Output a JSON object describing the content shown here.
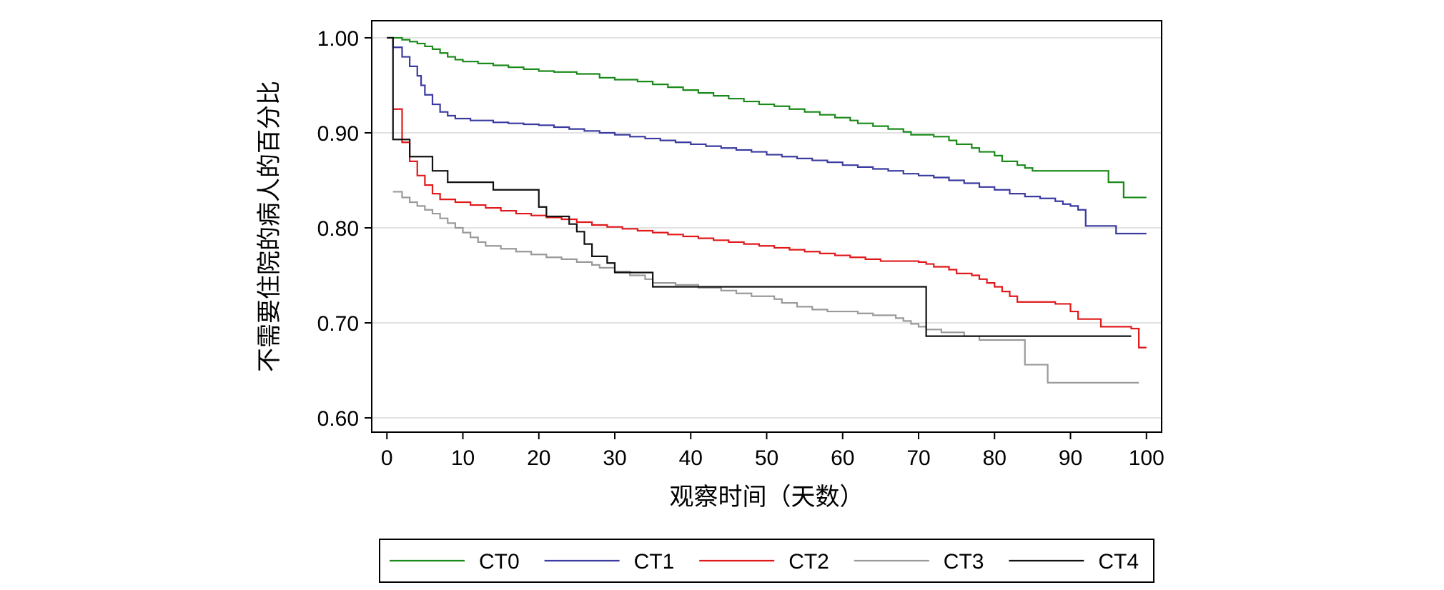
{
  "chart_data": {
    "type": "line",
    "step": true,
    "title": "",
    "xlabel": "观察时间（天数）",
    "ylabel": "不需要住院的病人的百分比",
    "xlim": [
      -2,
      102
    ],
    "ylim": [
      0.585,
      1.018
    ],
    "xticks": [
      0,
      10,
      20,
      30,
      40,
      50,
      60,
      70,
      80,
      90,
      100
    ],
    "xtick_labels": [
      "0",
      "10",
      "20",
      "30",
      "40",
      "50",
      "60",
      "70",
      "80",
      "90",
      "100"
    ],
    "yticks": [
      0.6,
      0.7,
      0.8,
      0.9,
      1.0
    ],
    "ytick_labels": [
      "0.60",
      "0.70",
      "0.80",
      "0.90",
      "1.00"
    ],
    "grid": "horizontal",
    "legend_position": "bottom",
    "series": [
      {
        "name": "CT0",
        "color": "#1a8a1a",
        "points": [
          [
            0,
            1.0
          ],
          [
            2,
            0.998
          ],
          [
            3,
            0.996
          ],
          [
            4,
            0.994
          ],
          [
            5,
            0.991
          ],
          [
            6,
            0.988
          ],
          [
            7,
            0.984
          ],
          [
            8,
            0.98
          ],
          [
            9,
            0.977
          ],
          [
            10,
            0.975
          ],
          [
            12,
            0.973
          ],
          [
            14,
            0.971
          ],
          [
            16,
            0.969
          ],
          [
            18,
            0.967
          ],
          [
            20,
            0.965
          ],
          [
            22,
            0.964
          ],
          [
            25,
            0.962
          ],
          [
            28,
            0.958
          ],
          [
            30,
            0.956
          ],
          [
            33,
            0.954
          ],
          [
            35,
            0.951
          ],
          [
            37,
            0.948
          ],
          [
            39,
            0.945
          ],
          [
            41,
            0.942
          ],
          [
            43,
            0.939
          ],
          [
            45,
            0.936
          ],
          [
            47,
            0.933
          ],
          [
            49,
            0.93
          ],
          [
            51,
            0.928
          ],
          [
            53,
            0.925
          ],
          [
            55,
            0.922
          ],
          [
            57,
            0.919
          ],
          [
            59,
            0.916
          ],
          [
            61,
            0.913
          ],
          [
            62,
            0.91
          ],
          [
            64,
            0.907
          ],
          [
            66,
            0.904
          ],
          [
            68,
            0.901
          ],
          [
            69,
            0.898
          ],
          [
            72,
            0.896
          ],
          [
            74,
            0.892
          ],
          [
            75,
            0.888
          ],
          [
            77,
            0.884
          ],
          [
            78,
            0.88
          ],
          [
            80,
            0.876
          ],
          [
            81,
            0.87
          ],
          [
            83,
            0.866
          ],
          [
            84,
            0.863
          ],
          [
            85,
            0.86
          ],
          [
            87,
            0.86
          ],
          [
            95,
            0.848
          ],
          [
            97,
            0.832
          ],
          [
            100,
            0.832
          ]
        ]
      },
      {
        "name": "CT1",
        "color": "#3a3aa0",
        "points": [
          [
            0,
            1.0
          ],
          [
            0.8,
            0.99
          ],
          [
            2,
            0.98
          ],
          [
            3,
            0.97
          ],
          [
            4,
            0.96
          ],
          [
            4.5,
            0.95
          ],
          [
            5,
            0.94
          ],
          [
            6,
            0.93
          ],
          [
            7,
            0.922
          ],
          [
            8,
            0.918
          ],
          [
            9,
            0.915
          ],
          [
            11,
            0.913
          ],
          [
            14,
            0.911
          ],
          [
            16,
            0.91
          ],
          [
            18,
            0.909
          ],
          [
            20,
            0.908
          ],
          [
            22,
            0.906
          ],
          [
            24,
            0.904
          ],
          [
            26,
            0.902
          ],
          [
            28,
            0.9
          ],
          [
            30,
            0.898
          ],
          [
            32,
            0.896
          ],
          [
            34,
            0.894
          ],
          [
            36,
            0.892
          ],
          [
            38,
            0.89
          ],
          [
            40,
            0.888
          ],
          [
            42,
            0.886
          ],
          [
            44,
            0.884
          ],
          [
            46,
            0.882
          ],
          [
            48,
            0.88
          ],
          [
            50,
            0.877
          ],
          [
            52,
            0.875
          ],
          [
            54,
            0.873
          ],
          [
            56,
            0.871
          ],
          [
            58,
            0.869
          ],
          [
            60,
            0.866
          ],
          [
            62,
            0.864
          ],
          [
            64,
            0.862
          ],
          [
            66,
            0.86
          ],
          [
            68,
            0.857
          ],
          [
            70,
            0.855
          ],
          [
            72,
            0.853
          ],
          [
            74,
            0.85
          ],
          [
            76,
            0.847
          ],
          [
            78,
            0.843
          ],
          [
            80,
            0.84
          ],
          [
            82,
            0.836
          ],
          [
            84,
            0.833
          ],
          [
            86,
            0.831
          ],
          [
            88,
            0.828
          ],
          [
            89,
            0.825
          ],
          [
            90,
            0.823
          ],
          [
            91,
            0.819
          ],
          [
            92,
            0.802
          ],
          [
            96,
            0.794
          ],
          [
            100,
            0.794
          ]
        ]
      },
      {
        "name": "CT2",
        "color": "#e0191b",
        "points": [
          [
            0.8,
            0.925
          ],
          [
            2,
            0.89
          ],
          [
            3,
            0.87
          ],
          [
            4,
            0.855
          ],
          [
            5,
            0.845
          ],
          [
            6,
            0.836
          ],
          [
            7,
            0.83
          ],
          [
            9,
            0.827
          ],
          [
            11,
            0.824
          ],
          [
            13,
            0.821
          ],
          [
            15,
            0.818
          ],
          [
            17,
            0.815
          ],
          [
            19,
            0.813
          ],
          [
            21,
            0.811
          ],
          [
            23,
            0.809
          ],
          [
            25,
            0.806
          ],
          [
            27,
            0.803
          ],
          [
            29,
            0.801
          ],
          [
            31,
            0.799
          ],
          [
            33,
            0.797
          ],
          [
            35,
            0.795
          ],
          [
            37,
            0.793
          ],
          [
            39,
            0.791
          ],
          [
            41,
            0.789
          ],
          [
            43,
            0.787
          ],
          [
            45,
            0.785
          ],
          [
            47,
            0.783
          ],
          [
            49,
            0.781
          ],
          [
            51,
            0.779
          ],
          [
            53,
            0.777
          ],
          [
            55,
            0.775
          ],
          [
            57,
            0.773
          ],
          [
            59,
            0.771
          ],
          [
            61,
            0.769
          ],
          [
            63,
            0.767
          ],
          [
            65,
            0.765
          ],
          [
            70,
            0.764
          ],
          [
            71,
            0.762
          ],
          [
            72,
            0.759
          ],
          [
            74,
            0.756
          ],
          [
            75,
            0.752
          ],
          [
            77,
            0.75
          ],
          [
            78,
            0.746
          ],
          [
            79,
            0.742
          ],
          [
            80,
            0.738
          ],
          [
            81,
            0.733
          ],
          [
            82,
            0.728
          ],
          [
            83,
            0.722
          ],
          [
            88,
            0.72
          ],
          [
            90,
            0.712
          ],
          [
            91,
            0.704
          ],
          [
            94,
            0.696
          ],
          [
            98,
            0.694
          ],
          [
            99,
            0.674
          ],
          [
            100,
            0.674
          ]
        ]
      },
      {
        "name": "CT3",
        "color": "#9a9a9a",
        "points": [
          [
            0.8,
            0.838
          ],
          [
            2,
            0.832
          ],
          [
            3,
            0.827
          ],
          [
            4,
            0.823
          ],
          [
            5,
            0.819
          ],
          [
            6,
            0.815
          ],
          [
            7,
            0.81
          ],
          [
            8,
            0.805
          ],
          [
            9,
            0.8
          ],
          [
            10,
            0.795
          ],
          [
            11,
            0.79
          ],
          [
            12,
            0.785
          ],
          [
            13,
            0.781
          ],
          [
            15,
            0.778
          ],
          [
            17,
            0.775
          ],
          [
            19,
            0.772
          ],
          [
            21,
            0.769
          ],
          [
            23,
            0.767
          ],
          [
            25,
            0.764
          ],
          [
            27,
            0.761
          ],
          [
            28,
            0.758
          ],
          [
            30,
            0.754
          ],
          [
            32,
            0.75
          ],
          [
            34,
            0.746
          ],
          [
            35,
            0.742
          ],
          [
            38,
            0.74
          ],
          [
            41,
            0.737
          ],
          [
            44,
            0.734
          ],
          [
            46,
            0.731
          ],
          [
            48,
            0.728
          ],
          [
            51,
            0.725
          ],
          [
            52,
            0.721
          ],
          [
            54,
            0.717
          ],
          [
            56,
            0.714
          ],
          [
            58,
            0.712
          ],
          [
            62,
            0.71
          ],
          [
            64,
            0.708
          ],
          [
            67,
            0.705
          ],
          [
            68,
            0.702
          ],
          [
            69,
            0.699
          ],
          [
            70,
            0.696
          ],
          [
            71,
            0.693
          ],
          [
            73,
            0.69
          ],
          [
            76,
            0.686
          ],
          [
            78,
            0.682
          ],
          [
            84,
            0.656
          ],
          [
            87,
            0.637
          ],
          [
            99,
            0.637
          ]
        ]
      },
      {
        "name": "CT4",
        "color": "#111111",
        "points": [
          [
            0,
            1.0
          ],
          [
            0.8,
            0.893
          ],
          [
            3,
            0.875
          ],
          [
            6,
            0.86
          ],
          [
            8,
            0.848
          ],
          [
            14,
            0.84
          ],
          [
            20,
            0.822
          ],
          [
            21,
            0.812
          ],
          [
            24,
            0.804
          ],
          [
            25,
            0.796
          ],
          [
            26,
            0.783
          ],
          [
            27,
            0.77
          ],
          [
            29,
            0.763
          ],
          [
            30,
            0.753
          ],
          [
            35,
            0.738
          ],
          [
            71,
            0.686
          ],
          [
            98,
            0.686
          ]
        ]
      }
    ]
  }
}
